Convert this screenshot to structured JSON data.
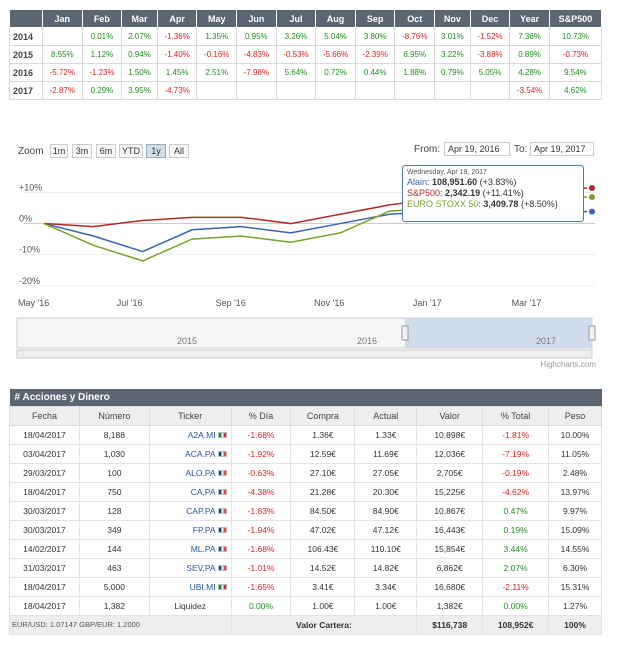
{
  "monthly": {
    "headers": [
      "",
      "Jan",
      "Feb",
      "Mar",
      "Apr",
      "May",
      "Jun",
      "Jul",
      "Aug",
      "Sep",
      "Oct",
      "Nov",
      "Dec",
      "Year",
      "S&P500"
    ],
    "rows": [
      {
        "year": "2014",
        "cells": [
          "",
          "0.01%",
          "2.07%",
          "-1.36%",
          "1.35%",
          "0.95%",
          "3.26%",
          "5.04%",
          "3.80%",
          "-8.76%",
          "3.01%",
          "-1.52%",
          "7.36%",
          "10.73%"
        ]
      },
      {
        "year": "2015",
        "cells": [
          "8.55%",
          "1.12%",
          "0.94%",
          "-1.40%",
          "-0.16%",
          "-4.83%",
          "-0.53%",
          "-5.66%",
          "-2.39%",
          "6.95%",
          "3.22%",
          "-3.88%",
          "0.89%",
          "-0.73%"
        ]
      },
      {
        "year": "2016",
        "cells": [
          "-5.72%",
          "-1.23%",
          "1.50%",
          "1.45%",
          "2.51%",
          "-7.98%",
          "5.64%",
          "0.72%",
          "0.44%",
          "1.88%",
          "0.79%",
          "5.05%",
          "4.28%",
          "9.54%"
        ]
      },
      {
        "year": "2017",
        "cells": [
          "-2.87%",
          "0.29%",
          "3.95%",
          "-4.73%",
          "",
          "",
          "",
          "",
          "",
          "",
          "",
          "",
          "-3.54%",
          "4.62%"
        ]
      }
    ]
  },
  "chart": {
    "zoom_label": "Zoom",
    "zoom_buttons": [
      "1m",
      "3m",
      "6m",
      "YTD",
      "1y",
      "All"
    ],
    "active_zoom": "1y",
    "from_label": "From:",
    "from_date": "Apr 19, 2016",
    "to_label": "To:",
    "to_date": "Apr 19, 2017",
    "y_ticks": [
      "+10%",
      "0%",
      "-10%",
      "-20%"
    ],
    "x_ticks": [
      "May '16",
      "Jul '16",
      "Sep '16",
      "Nov '16",
      "Jan '17",
      "Mar '17"
    ],
    "navigator_labels": [
      "2015",
      "2016",
      "2017"
    ],
    "credits": "Highcharts.com",
    "tooltip": {
      "date": "Wednesday, Apr 19, 2017",
      "rows": [
        {
          "name": "Alain",
          "value": "108,951.60",
          "change": "(+3.83%)",
          "color": "#3a63b0"
        },
        {
          "name": "S&P500",
          "value": "2,342.19",
          "change": "(+11.41%)",
          "color": "#b02a2a"
        },
        {
          "name": "EURO STOXX 50",
          "value": "3,409.78",
          "change": "(+8.50%)",
          "color": "#7ba12a"
        }
      ]
    }
  },
  "chart_data": {
    "type": "line",
    "x": [
      "May '16",
      "Jun '16",
      "Jul '16",
      "Aug '16",
      "Sep '16",
      "Oct '16",
      "Nov '16",
      "Dec '16",
      "Jan '17",
      "Feb '17",
      "Mar '17",
      "Apr '17"
    ],
    "series": [
      {
        "name": "Alain",
        "color": "#3a63b0",
        "values": [
          0,
          -4,
          -9,
          -2,
          -1,
          -3,
          0,
          3,
          4,
          3,
          4,
          3.83
        ]
      },
      {
        "name": "S&P500",
        "color": "#b02a2a",
        "values": [
          0,
          -1,
          1,
          2,
          2,
          0,
          3,
          6,
          8,
          10,
          10,
          11.41
        ]
      },
      {
        "name": "EURO STOXX 50",
        "color": "#7ba12a",
        "values": [
          0,
          -7,
          -12,
          -5,
          -4,
          -6,
          -3,
          4,
          5,
          5,
          9,
          8.5
        ]
      }
    ],
    "ylim": [
      -22,
      14
    ]
  },
  "holdings": {
    "title": "# Acciones y Dinero",
    "columns": [
      "Fecha",
      "Número",
      "Ticker",
      "% Día",
      "Compra",
      "Actual",
      "Valor",
      "% Total",
      "Peso"
    ],
    "rows": [
      {
        "fecha": "18/04/2017",
        "numero": "8,188",
        "ticker": "A2A.MI",
        "flag": "it",
        "dia": "-1.68%",
        "compra": "1.36€",
        "actual": "1.33€",
        "valor": "10,898€",
        "total": "-1.81%",
        "peso": "10.00%"
      },
      {
        "fecha": "03/04/2017",
        "numero": "1,030",
        "ticker": "ACA.PA",
        "flag": "fr",
        "dia": "-1.92%",
        "compra": "12.59€",
        "actual": "11.69€",
        "valor": "12,036€",
        "total": "-7.19%",
        "peso": "11.05%"
      },
      {
        "fecha": "29/03/2017",
        "numero": "100",
        "ticker": "ALO.PA",
        "flag": "fr",
        "dia": "-0.63%",
        "compra": "27.10€",
        "actual": "27.05€",
        "valor": "2,705€",
        "total": "-0.19%",
        "peso": "2.48%"
      },
      {
        "fecha": "18/04/2017",
        "numero": "750",
        "ticker": "CA.PA",
        "flag": "fr",
        "dia": "-4.38%",
        "compra": "21.28€",
        "actual": "20.30€",
        "valor": "15,225€",
        "total": "-4.62%",
        "peso": "13.97%"
      },
      {
        "fecha": "30/03/2017",
        "numero": "128",
        "ticker": "CAP.PA",
        "flag": "fr",
        "dia": "-1.83%",
        "compra": "84.50€",
        "actual": "84.90€",
        "valor": "10,867€",
        "total": "0.47%",
        "peso": "9.97%"
      },
      {
        "fecha": "30/03/2017",
        "numero": "349",
        "ticker": "FP.PA",
        "flag": "fr",
        "dia": "-1.94%",
        "compra": "47.02€",
        "actual": "47.12€",
        "valor": "16,443€",
        "total": "0.19%",
        "peso": "15.09%"
      },
      {
        "fecha": "14/02/2017",
        "numero": "144",
        "ticker": "ML.PA",
        "flag": "fr",
        "dia": "-1.68%",
        "compra": "106.43€",
        "actual": "110.10€",
        "valor": "15,854€",
        "total": "3.44%",
        "peso": "14.55%"
      },
      {
        "fecha": "31/03/2017",
        "numero": "463",
        "ticker": "SEV.PA",
        "flag": "fr",
        "dia": "-1.01%",
        "compra": "14.52€",
        "actual": "14.82€",
        "valor": "6,862€",
        "total": "2.07%",
        "peso": "6.30%"
      },
      {
        "fecha": "18/04/2017",
        "numero": "5,000",
        "ticker": "UBI.MI",
        "flag": "it",
        "dia": "-1.65%",
        "compra": "3.41€",
        "actual": "3.34€",
        "valor": "16,680€",
        "total": "-2.11%",
        "peso": "15.31%"
      },
      {
        "fecha": "18/04/2017",
        "numero": "1,382",
        "ticker": "Liquidez",
        "flag": "",
        "dia": "0.00%",
        "compra": "1.00€",
        "actual": "1.00€",
        "valor": "1,382€",
        "total": "0.00%",
        "peso": "1.27%"
      }
    ],
    "footer": {
      "fx": "EUR/USD: 1.07147    GBP/EUR: 1.2000",
      "label": "Valor Cartera:",
      "usd": "$116,738",
      "eur": "108,952€",
      "pct": "100%"
    }
  }
}
